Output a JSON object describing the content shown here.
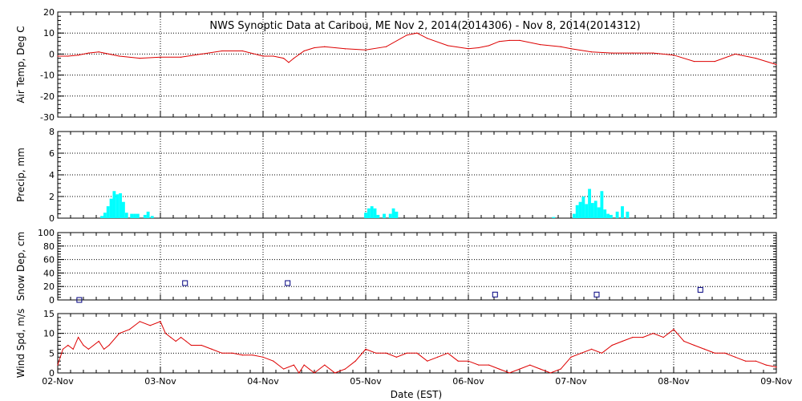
{
  "title": "NWS Synoptic Data at Caribou, ME   Nov  2, 2014(2014306) - Nov  8, 2014(2014312)",
  "x_axis": {
    "label": "Date (EST)",
    "ticks": [
      "02-Nov",
      "03-Nov",
      "04-Nov",
      "05-Nov",
      "06-Nov",
      "07-Nov",
      "08-Nov",
      "09-Nov"
    ]
  },
  "colors": {
    "temp": "#dd0000",
    "precip": "#00ffff",
    "snow": "#000080",
    "wind": "#dd0000",
    "grid": "#000000"
  },
  "chart_data": [
    {
      "type": "line",
      "ylabel": "Air Temp, Deg C",
      "ylim": [
        -30,
        20
      ],
      "yticks": [
        20,
        10,
        0,
        -10,
        -20,
        -30
      ],
      "grid": "dotted at day boundaries",
      "x": [
        0,
        0.1,
        0.2,
        0.3,
        0.4,
        0.6,
        0.8,
        1.0,
        1.2,
        1.4,
        1.6,
        1.8,
        2.0,
        2.1,
        2.2,
        2.25,
        2.3,
        2.4,
        2.5,
        2.6,
        2.8,
        3.0,
        3.2,
        3.4,
        3.5,
        3.6,
        3.8,
        4.0,
        4.1,
        4.2,
        4.3,
        4.4,
        4.5,
        4.7,
        4.9,
        5.0,
        5.2,
        5.4,
        5.6,
        5.8,
        6.0,
        6.2,
        6.4,
        6.6,
        6.8,
        7.0
      ],
      "y": [
        -1,
        -1,
        -0.5,
        0.5,
        1,
        -1,
        -2,
        -1.5,
        -1.5,
        0,
        1.5,
        1.5,
        -1,
        -1,
        -2,
        -4,
        -2,
        1.5,
        3,
        3.5,
        2.5,
        2,
        3.5,
        9,
        10,
        7.5,
        4,
        2.5,
        3,
        4,
        6,
        6.5,
        6.5,
        4.5,
        3.5,
        2.5,
        1,
        0.5,
        0.5,
        0.5,
        -0.5,
        -3.5,
        -3.5,
        0,
        -2,
        -5
      ]
    },
    {
      "type": "bar",
      "ylabel": "Precip, mm",
      "ylim": [
        0,
        8
      ],
      "yticks": [
        8,
        6,
        4,
        2,
        0
      ],
      "bar_width_days": 0.03,
      "x": [
        0.43,
        0.46,
        0.49,
        0.52,
        0.55,
        0.58,
        0.61,
        0.64,
        0.67,
        0.72,
        0.75,
        0.78,
        0.85,
        0.88,
        0.92,
        3.0,
        3.03,
        3.06,
        3.09,
        3.12,
        3.18,
        3.24,
        3.27,
        3.3,
        4.83,
        5.03,
        5.06,
        5.09,
        5.12,
        5.15,
        5.18,
        5.21,
        5.24,
        5.27,
        5.3,
        5.33,
        5.36,
        5.39,
        5.45,
        5.5,
        5.55
      ],
      "values": [
        0.2,
        0.5,
        1.1,
        1.8,
        2.5,
        2.2,
        2.3,
        1.5,
        0.5,
        0.4,
        0.4,
        0.4,
        0.3,
        0.6,
        0.2,
        0.5,
        0.9,
        1.1,
        0.9,
        0.3,
        0.4,
        0.4,
        0.9,
        0.6,
        0.1,
        0.4,
        1.2,
        1.5,
        2.0,
        1.3,
        2.7,
        1.4,
        1.6,
        1.0,
        2.5,
        0.8,
        0.4,
        0.3,
        0.6,
        1.1,
        0.6
      ]
    },
    {
      "type": "scatter",
      "ylabel": "Snow Dep, cm",
      "ylim": [
        0,
        100
      ],
      "yticks": [
        100,
        80,
        60,
        40,
        20,
        0
      ],
      "x": [
        0.21,
        1.24,
        2.24,
        4.26,
        5.25,
        6.26
      ],
      "y": [
        0,
        25,
        25,
        8,
        8,
        15
      ]
    },
    {
      "type": "line",
      "ylabel": "Wind Spd, m/s",
      "ylim": [
        0,
        15
      ],
      "yticks": [
        15,
        10,
        5,
        0
      ],
      "x": [
        0,
        0.05,
        0.1,
        0.15,
        0.2,
        0.25,
        0.3,
        0.4,
        0.45,
        0.5,
        0.6,
        0.7,
        0.8,
        0.9,
        1.0,
        1.05,
        1.1,
        1.15,
        1.2,
        1.25,
        1.3,
        1.4,
        1.5,
        1.6,
        1.7,
        1.8,
        1.9,
        2.0,
        2.1,
        2.2,
        2.3,
        2.35,
        2.4,
        2.45,
        2.5,
        2.6,
        2.7,
        2.8,
        2.9,
        3.0,
        3.1,
        3.2,
        3.3,
        3.4,
        3.5,
        3.6,
        3.7,
        3.8,
        3.9,
        4.0,
        4.1,
        4.2,
        4.3,
        4.4,
        4.5,
        4.6,
        4.7,
        4.8,
        4.9,
        5.0,
        5.1,
        5.2,
        5.3,
        5.4,
        5.5,
        5.6,
        5.7,
        5.8,
        5.9,
        6.0,
        6.1,
        6.2,
        6.3,
        6.4,
        6.5,
        6.6,
        6.7,
        6.8,
        6.9,
        7.0
      ],
      "y": [
        2,
        6,
        7,
        6,
        9,
        7,
        6,
        8,
        6,
        7,
        10,
        11,
        13,
        12,
        13,
        10,
        9,
        8,
        9,
        8,
        7,
        7,
        6,
        5,
        5,
        4.5,
        4.5,
        4,
        3,
        1,
        2,
        0,
        2,
        1,
        0,
        2,
        0,
        1,
        3,
        6,
        5,
        5,
        4,
        5,
        5,
        3,
        4,
        5,
        3,
        3,
        2,
        2,
        1,
        0,
        1,
        2,
        1,
        0,
        1,
        4,
        5,
        6,
        5,
        7,
        8,
        9,
        9,
        10,
        9,
        11,
        8,
        7,
        6,
        5,
        5,
        4,
        3,
        3,
        2,
        1.5
      ]
    }
  ]
}
